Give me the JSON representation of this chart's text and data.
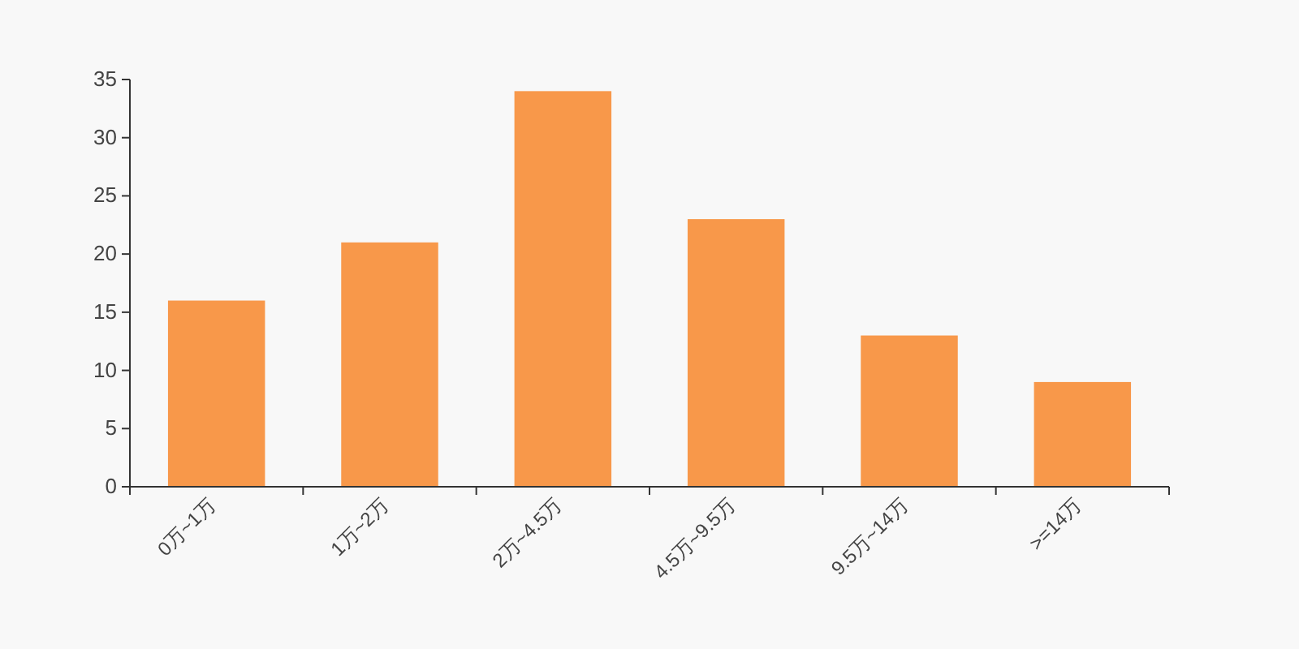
{
  "chart_data": {
    "type": "bar",
    "categories": [
      "0万~1万",
      "1万~2万",
      "2万~4.5万",
      "4.5万~9.5万",
      "9.5万~14万",
      ">=14万"
    ],
    "values": [
      16,
      21,
      34,
      23,
      13,
      9
    ],
    "color": "#f8984a",
    "ylim": [
      0,
      35
    ],
    "yticks": [
      0,
      5,
      10,
      15,
      20,
      25,
      30,
      35
    ]
  }
}
